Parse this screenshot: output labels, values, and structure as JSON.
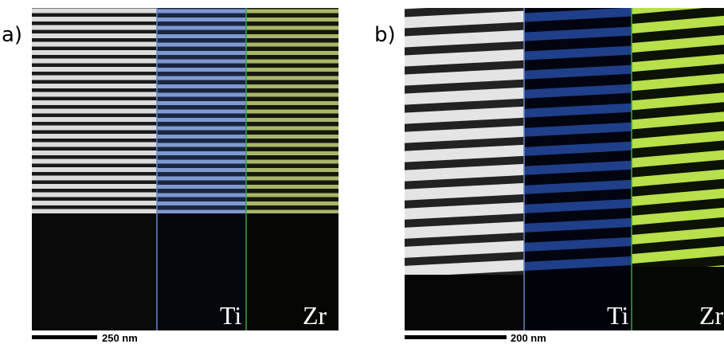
{
  "panels": [
    {
      "label": "a)",
      "maps": [
        "Ti",
        "Zr"
      ],
      "scale_bar": "250 nm"
    },
    {
      "label": "b)",
      "maps": [
        "Ti",
        "Zr"
      ],
      "scale_bar": "200 nm"
    }
  ]
}
